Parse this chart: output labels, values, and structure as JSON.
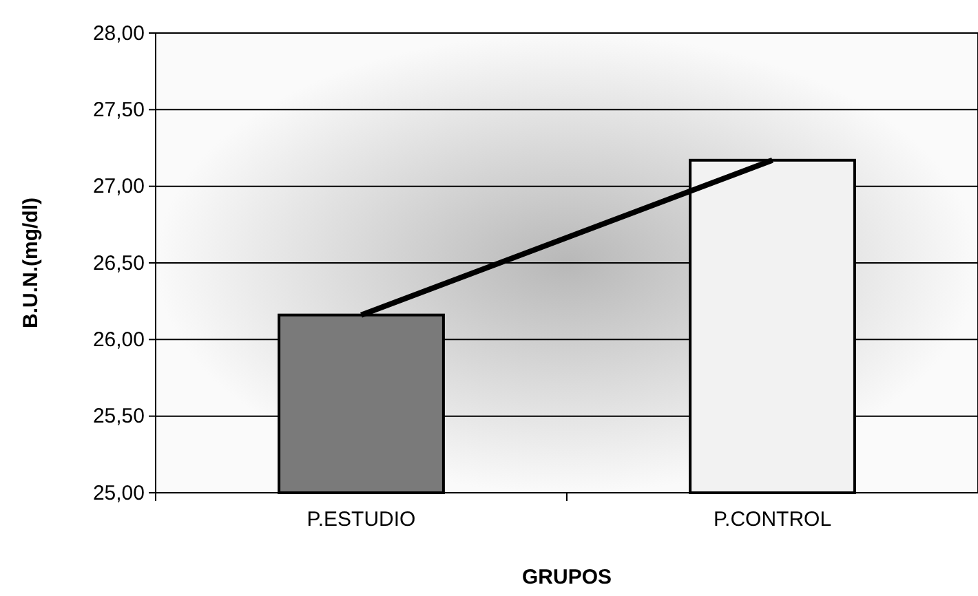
{
  "chart_data": {
    "type": "bar",
    "xlabel": "GRUPOS",
    "ylabel": "B.U.N.(mg/dl)",
    "categories": [
      "P.ESTUDIO",
      "P.CONTROL"
    ],
    "series": [
      {
        "colors": [
          "#7a7a7a",
          "#f2f2f2"
        ],
        "values": [
          26.16,
          27.17
        ]
      },
      {
        "type": "line",
        "color": "#000000",
        "values": [
          26.16,
          27.17
        ]
      }
    ],
    "ylim": [
      25,
      28
    ],
    "yticks": [
      {
        "value": 25,
        "label": "25,00"
      },
      {
        "value": 25.5,
        "label": "25,50"
      },
      {
        "value": 26,
        "label": "26,00"
      },
      {
        "value": 26.5,
        "label": "26,50"
      },
      {
        "value": 27,
        "label": "27,00"
      },
      {
        "value": 27.5,
        "label": "27,50"
      },
      {
        "value": 28,
        "label": "28,00"
      }
    ],
    "grid": "y",
    "marker": "none"
  }
}
